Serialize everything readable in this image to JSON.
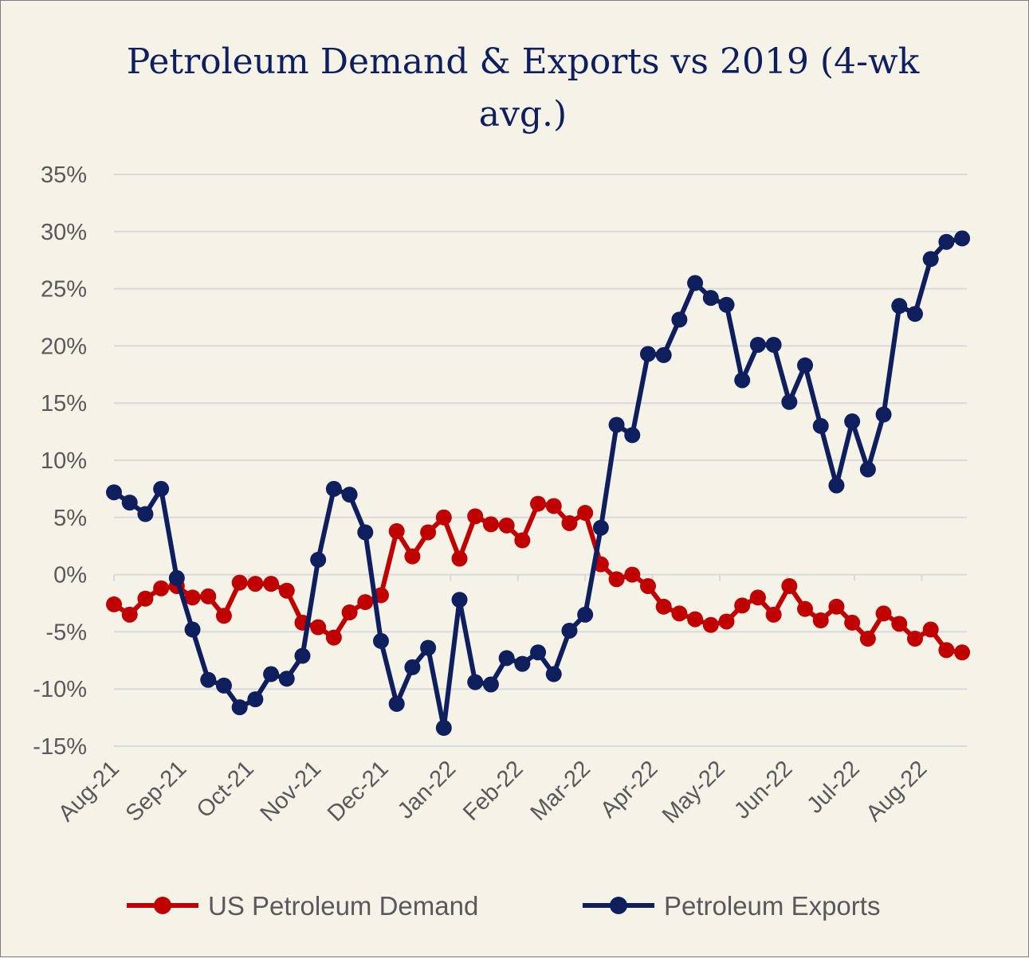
{
  "chart_data": {
    "type": "line",
    "title": "Petroleum Demand & Exports vs 2019 (4-wk avg.)",
    "xlabel": "",
    "ylabel": "",
    "ylim": [
      -15,
      35
    ],
    "y_ticks": [
      35,
      30,
      25,
      20,
      15,
      10,
      5,
      0,
      -5,
      -10,
      -15
    ],
    "y_tick_labels": [
      "35%",
      "30%",
      "25%",
      "20%",
      "15%",
      "10%",
      "5%",
      "0%",
      "-5%",
      "-10%",
      "-15%"
    ],
    "x_tick_labels": [
      "Aug-21",
      "Sep-21",
      "Oct-21",
      "Nov-21",
      "Dec-21",
      "Jan-22",
      "Feb-22",
      "Mar-22",
      "Apr-22",
      "May-22",
      "Jun-22",
      "Jul-22",
      "Aug-22"
    ],
    "x_tick_positions": [
      0,
      4.2857,
      8.5714,
      12.8571,
      17.1429,
      21.4286,
      25.7143,
      30,
      34.2857,
      38.5714,
      42.8571,
      47.1429,
      51.4286
    ],
    "x_range": [
      0,
      54.3
    ],
    "grid": "horizontal",
    "legend": "bottom",
    "series": [
      {
        "name": "US Petroleum Demand",
        "color": "#c00000",
        "values": [
          -2.6,
          -3.5,
          -2.1,
          -1.2,
          -1.0,
          -2.0,
          -1.9,
          -3.6,
          -0.7,
          -0.8,
          -0.8,
          -1.4,
          -4.2,
          -4.6,
          -5.5,
          -3.3,
          -2.4,
          -1.8,
          3.8,
          1.6,
          3.7,
          5.0,
          1.4,
          5.1,
          4.4,
          4.3,
          3.0,
          6.2,
          6.0,
          4.5,
          5.4,
          0.9,
          -0.4,
          0.0,
          -1.0,
          -2.8,
          -3.4,
          -3.9,
          -4.4,
          -4.1,
          -2.7,
          -2.0,
          -3.5,
          -1.0,
          -3.0,
          -4.0,
          -2.8,
          -4.2,
          -5.6,
          -3.4,
          -4.3,
          -5.6,
          -4.8,
          -6.6,
          -6.8
        ]
      },
      {
        "name": "Petroleum Exports",
        "color": "#0f1f5e",
        "values": [
          7.2,
          6.3,
          5.3,
          7.5,
          -0.3,
          -4.8,
          -9.2,
          -9.7,
          -11.6,
          -10.9,
          -8.7,
          -9.1,
          -7.1,
          1.3,
          7.5,
          7.0,
          3.7,
          -5.8,
          -11.3,
          -8.1,
          -6.4,
          -13.4,
          -2.2,
          -9.4,
          -9.6,
          -7.3,
          -7.8,
          -6.8,
          -8.7,
          -4.9,
          -3.5,
          4.1,
          13.1,
          12.2,
          19.3,
          19.2,
          22.3,
          25.5,
          24.2,
          23.6,
          17.0,
          20.1,
          20.1,
          15.1,
          18.3,
          13.0,
          7.8,
          13.4,
          9.2,
          14.0,
          23.5,
          22.8,
          27.6,
          29.1,
          29.4
        ]
      }
    ]
  }
}
